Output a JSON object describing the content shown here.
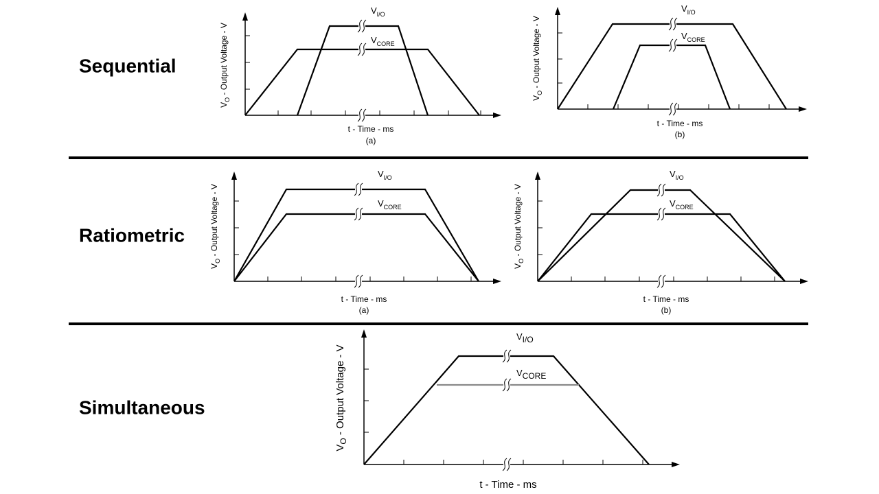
{
  "sections": [
    {
      "title": "Sequential",
      "diagrams": [
        {
          "y_label": {
            "main": "V",
            "sub": "O",
            "rest": " - Output Voltage - V"
          },
          "x_label": "t - Time - ms",
          "caption": "(a)",
          "curves": [
            {
              "main": "V",
              "sub": "I/O"
            },
            {
              "main": "V",
              "sub": "CORE"
            }
          ]
        },
        {
          "y_label": {
            "main": "V",
            "sub": "O",
            "rest": " - Output Voltage - V"
          },
          "x_label": "t - Time - ms",
          "caption": "(b)",
          "curves": [
            {
              "main": "V",
              "sub": "I/O"
            },
            {
              "main": "V",
              "sub": "CORE"
            }
          ]
        }
      ]
    },
    {
      "title": "Ratiometric",
      "diagrams": [
        {
          "y_label": {
            "main": "V",
            "sub": "O",
            "rest": " - Output Voltage - V"
          },
          "x_label": "t - Time - ms",
          "caption": "(a)",
          "curves": [
            {
              "main": "V",
              "sub": "I/O"
            },
            {
              "main": "V",
              "sub": "CORE"
            }
          ]
        },
        {
          "y_label": {
            "main": "V",
            "sub": "O",
            "rest": " - Output Voltage - V"
          },
          "x_label": "t - Time - ms",
          "caption": "(b)",
          "curves": [
            {
              "main": "V",
              "sub": "I/O"
            },
            {
              "main": "V",
              "sub": "CORE"
            }
          ]
        }
      ]
    },
    {
      "title": "Simultaneous",
      "diagrams": [
        {
          "y_label": {
            "main": "V",
            "sub": "O",
            "rest": " - Output Voltage - V"
          },
          "x_label": "t - Time - ms",
          "curves": [
            {
              "main": "V",
              "sub": "I/O"
            },
            {
              "main": "V",
              "sub": "CORE"
            }
          ]
        }
      ]
    }
  ]
}
